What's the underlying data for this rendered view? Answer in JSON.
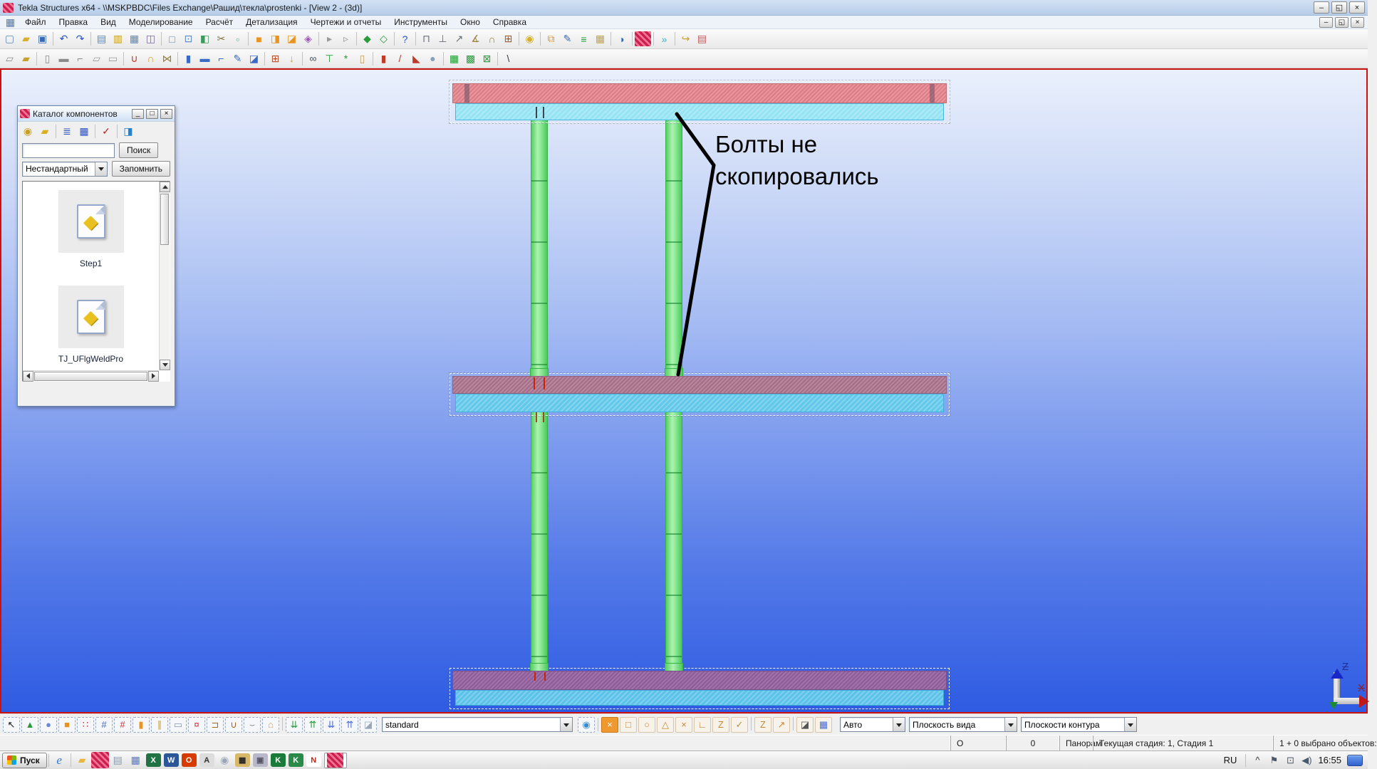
{
  "colors": {
    "accent_red": "#cc1111",
    "beam_pink": "#e9959b",
    "beam_mauve": "#b7879d",
    "beam_purple": "#a172a8",
    "beam_cyan": "#5fccea",
    "column_green": "#86ea8a"
  },
  "window": {
    "title": "Tekla Structures x64 - \\\\MSKPBDC\\Files Exchange\\Рашид\\текла\\prostenki  - [View 2 - (3d)]",
    "controls": [
      {
        "n": "minimize-button",
        "g": "–",
        "cls": "wbtn"
      },
      {
        "n": "restore-button",
        "g": "◱",
        "cls": "wbtn"
      },
      {
        "n": "close-button",
        "g": "×",
        "cls": "wbtn"
      }
    ],
    "mdi_controls": [
      {
        "n": "mdi-minimize-button",
        "g": "–",
        "cls": "wbtn sm"
      },
      {
        "n": "mdi-restore-button",
        "g": "◱",
        "cls": "wbtn sm"
      },
      {
        "n": "mdi-close-button",
        "g": "×",
        "cls": "wbtn sm"
      }
    ],
    "mdi_icon": [
      {
        "n": "view-window-icon",
        "g": "▦",
        "c": "#4a7ab5",
        "i": false
      }
    ]
  },
  "menubar": {
    "items": [
      {
        "n": "menu-file",
        "label": "Файл"
      },
      {
        "n": "menu-edit",
        "label": "Правка"
      },
      {
        "n": "menu-view",
        "label": "Вид"
      },
      {
        "n": "menu-modeling",
        "label": "Моделирование"
      },
      {
        "n": "menu-analysis",
        "label": "Расчёт"
      },
      {
        "n": "menu-detailing",
        "label": "Детализация"
      },
      {
        "n": "menu-drawings-reports",
        "label": "Чертежи и отчеты"
      },
      {
        "n": "menu-tools",
        "label": "Инструменты"
      },
      {
        "n": "menu-window",
        "label": "Окно"
      },
      {
        "n": "menu-help",
        "label": "Справка"
      }
    ]
  },
  "toolbar1": {
    "icons": [
      {
        "n": "new-file-icon",
        "g": "▢",
        "c": "#5a88c0"
      },
      {
        "n": "open-model-icon",
        "g": "▰",
        "c": "#d8b030"
      },
      {
        "n": "save-icon",
        "g": "▣",
        "c": "#3a68b0"
      },
      {
        "sep": true
      },
      {
        "n": "undo-icon",
        "g": "↶",
        "c": "#2a52c8"
      },
      {
        "n": "redo-icon",
        "g": "↷",
        "c": "#2a52c8"
      },
      {
        "sep": true
      },
      {
        "n": "copy-icon",
        "g": "▤",
        "c": "#5a88c0"
      },
      {
        "n": "paste-icon",
        "g": "▥",
        "c": "#c8a23a"
      },
      {
        "n": "paste-special-icon",
        "g": "▦",
        "c": "#5a88c0"
      },
      {
        "n": "stamp-icon",
        "g": "◫",
        "c": "#7a6a9a"
      },
      {
        "sep": true
      },
      {
        "n": "view-rect-icon",
        "g": "□",
        "c": "#5a88c0"
      },
      {
        "n": "view-point-icon",
        "g": "⊡",
        "c": "#5a88c0"
      },
      {
        "n": "view-list-icon",
        "g": "◧",
        "c": "#3a9a5a"
      },
      {
        "n": "cut-view-icon",
        "g": "✂",
        "c": "#8a7040"
      },
      {
        "n": "marquee-icon",
        "g": "▫",
        "c": "#6ab0a0"
      },
      {
        "sep": true
      },
      {
        "n": "create-part-icon",
        "g": "■",
        "c": "#e8941e"
      },
      {
        "n": "copy-part-icon",
        "g": "◨",
        "c": "#e8941e"
      },
      {
        "n": "move-part-icon",
        "g": "◪",
        "c": "#e8941e"
      },
      {
        "n": "purple-box-icon",
        "g": "◈",
        "c": "#9a5ab5"
      },
      {
        "sep": true
      },
      {
        "n": "arrow-prev-icon",
        "g": "▸",
        "c": "#9a9a9a"
      },
      {
        "n": "arrow-next-icon",
        "g": "▹",
        "c": "#9a9a9a"
      },
      {
        "sep": true
      },
      {
        "n": "numbering-icon",
        "g": "◆",
        "c": "#2a9a3a"
      },
      {
        "n": "numbering-all-icon",
        "g": "◇",
        "c": "#2a9a3a"
      },
      {
        "sep": true
      },
      {
        "n": "help-tool-icon",
        "g": "?",
        "c": "#2a52c8"
      },
      {
        "sep": true
      },
      {
        "n": "fence-icon",
        "g": "⊓",
        "c": "#666e7a"
      },
      {
        "n": "fence-half-icon",
        "g": "⊥",
        "c": "#666e7a"
      },
      {
        "n": "measure-icon",
        "g": "↗",
        "c": "#666e7a"
      },
      {
        "n": "measure-angle-icon",
        "g": "∡",
        "c": "#99803a"
      },
      {
        "n": "measure-arc-icon",
        "g": "∩",
        "c": "#99803a"
      },
      {
        "n": "bolt-measure-icon",
        "g": "⊞",
        "c": "#a05a2a"
      },
      {
        "sep": true
      },
      {
        "n": "pin-icon",
        "g": "◉",
        "c": "#d8b030"
      },
      {
        "sep": true
      },
      {
        "n": "component-copy-icon",
        "g": "⧉",
        "c": "#e8941e"
      },
      {
        "n": "component-edit-icon",
        "g": "✎",
        "c": "#3a6ab0"
      },
      {
        "n": "report-list-icon",
        "g": "≡",
        "c": "#2a9a3a"
      },
      {
        "n": "schedule-icon",
        "g": "▦",
        "c": "#c8a23a"
      },
      {
        "sep": true
      },
      {
        "n": "macro-icon",
        "g": "◑",
        "c": "#3a6ab0"
      },
      {
        "sep": true
      },
      {
        "n": "tekla-tool-icon",
        "g": "",
        "cls": "tklogo"
      },
      {
        "sep": true
      },
      {
        "n": "more-toolbars-icon",
        "g": "»",
        "c": "#3ab0c8"
      },
      {
        "sep": true
      },
      {
        "n": "open-component-icon",
        "g": "↪",
        "c": "#c8a030"
      },
      {
        "n": "screenshot-icon",
        "g": "▤",
        "c": "#c05a5a"
      }
    ]
  },
  "toolbar2": {
    "icons": [
      {
        "n": "page-gray-icon",
        "g": "▱",
        "c": "#8a8a8a"
      },
      {
        "n": "page-gold-icon",
        "g": "▰",
        "c": "#c8a030"
      },
      {
        "sep": true
      },
      {
        "n": "column-tool-icon",
        "g": "▯",
        "c": "#8a8a8a"
      },
      {
        "n": "beam-tool-icon",
        "g": "▬",
        "c": "#8a8a8a"
      },
      {
        "n": "polybeam-tool-icon",
        "g": "⌐",
        "c": "#8a8a8a"
      },
      {
        "n": "pad-tool-icon",
        "g": "▱",
        "c": "#9a9a9a"
      },
      {
        "n": "slab-tool-icon",
        "g": "▭",
        "c": "#9a9a9a"
      },
      {
        "sep": true
      },
      {
        "n": "ubolt-icon",
        "g": "∪",
        "c": "#c03a2a"
      },
      {
        "n": "hand-tool-icon",
        "g": "∩",
        "c": "#c8a030"
      },
      {
        "n": "hatch-x-icon",
        "g": "⋈",
        "c": "#99803a"
      },
      {
        "sep": true
      },
      {
        "n": "steel-column-icon",
        "g": "▮",
        "c": "#3a6ac8"
      },
      {
        "n": "steel-beam-icon",
        "g": "▬",
        "c": "#3a6ac8"
      },
      {
        "n": "steel-polybeam-icon",
        "g": "⌐",
        "c": "#3a6ac8"
      },
      {
        "n": "curved-beam-icon",
        "g": "✎",
        "c": "#3a6ac8"
      },
      {
        "n": "plate-icon",
        "g": "◪",
        "c": "#3a6ac8"
      },
      {
        "sep": true
      },
      {
        "n": "bolt-tool-icon",
        "g": "⊞",
        "c": "#b0502a"
      },
      {
        "n": "weld-tool-icon",
        "g": "↓",
        "c": "#c8a030"
      },
      {
        "sep": true
      },
      {
        "n": "binoculars-icon",
        "g": "∞",
        "c": "#44505e"
      },
      {
        "n": "phase-icon",
        "g": "⊤",
        "c": "#2a9a3a"
      },
      {
        "n": "autoconnect-icon",
        "g": "*",
        "c": "#2a9a3a"
      },
      {
        "n": "door-icon",
        "g": "▯",
        "c": "#c8a060"
      },
      {
        "sep": true
      },
      {
        "n": "fit-part-icon",
        "g": "▮",
        "c": "#c03a2a"
      },
      {
        "n": "split-part-icon",
        "g": "/",
        "c": "#c03a2a"
      },
      {
        "n": "chamfer-icon",
        "g": "◣",
        "c": "#c03a2a"
      },
      {
        "n": "sphere-icon",
        "g": "●",
        "c": "#88a0bb"
      },
      {
        "sep": true
      },
      {
        "n": "array-icon",
        "g": "▦",
        "c": "#2a9a3a"
      },
      {
        "n": "array2-icon",
        "g": "▩",
        "c": "#2a9a3a"
      },
      {
        "n": "array-x-icon",
        "g": "⊠",
        "c": "#2a9a3a"
      },
      {
        "sep": true
      },
      {
        "n": "construction-line-icon",
        "g": "\\",
        "c": "#333a44"
      }
    ]
  },
  "catalog": {
    "title": "Каталог компонентов",
    "controls": [
      {
        "n": "catalog-minimize-button",
        "g": "_",
        "cls": "cbtn"
      },
      {
        "n": "catalog-maximize-button",
        "g": "□",
        "cls": "cbtn"
      },
      {
        "n": "catalog-close-button",
        "g": "×",
        "cls": "cbtn"
      }
    ],
    "toolbar": [
      {
        "n": "search-components-icon",
        "g": "◉",
        "c": "#caa020"
      },
      {
        "n": "open-folder-icon",
        "g": "▰",
        "c": "#d8b020"
      },
      {
        "sep": true
      },
      {
        "n": "list-view-icon",
        "g": "≣",
        "c": "#2a50c0"
      },
      {
        "n": "thumbnails-view-icon",
        "g": "▦",
        "c": "#2a50c0"
      },
      {
        "sep": true
      },
      {
        "n": "abc-check-icon",
        "g": "✓",
        "c": "#c02020"
      },
      {
        "sep": true
      },
      {
        "n": "filter-icon",
        "g": "◨",
        "c": "#2a80c0"
      }
    ],
    "search_value": "",
    "search_button": "Поиск",
    "filter_value": "Нестандартный",
    "remember_button": "Запомнить",
    "doc_glyph": "◆",
    "items": [
      {
        "label": "Step1"
      },
      {
        "label": "TJ_UFlgWeldPro"
      }
    ]
  },
  "viewport": {
    "annotation_line1": "Болты не",
    "annotation_line2": "скопировались",
    "axis_z": "Z",
    "axis_x": "X"
  },
  "bottombar": {
    "select_icons": [
      {
        "n": "select-cursor-icon",
        "g": "↖",
        "c": "#111"
      },
      {
        "n": "select-components-icon",
        "g": "▲",
        "c": "#2a9a3a"
      },
      {
        "n": "select-points-icon",
        "g": "●",
        "c": "#6a8ad8"
      },
      {
        "n": "select-parts-icon",
        "g": "■",
        "c": "#e8941e"
      },
      {
        "n": "select-bolts-icon",
        "g": "∷",
        "c": "#cc2222"
      },
      {
        "n": "select-grid-icon",
        "g": "#",
        "c": "#3a6ac8"
      },
      {
        "n": "select-gridline-icon",
        "g": "#",
        "c": "#cc3333"
      },
      {
        "n": "select-rebar-icon",
        "g": "▮",
        "c": "#e8941e"
      },
      {
        "n": "select-rebar-group-icon",
        "g": "∥",
        "c": "#c8a030"
      },
      {
        "n": "select-surface-icon",
        "g": "▭",
        "c": "#8898b0"
      },
      {
        "n": "select-corners-icon",
        "g": "¤",
        "c": "#cc3333"
      },
      {
        "n": "select-single-bolt-icon",
        "g": "⊐",
        "c": "#a06a2a"
      },
      {
        "n": "select-ubolt-icon",
        "g": "∪",
        "c": "#a06a2a"
      },
      {
        "n": "select-weld-icon",
        "g": "⌣",
        "c": "#8a8a8a"
      },
      {
        "n": "select-polygon-icon",
        "g": "⌂",
        "c": "#c8a060"
      },
      {
        "sep": true
      },
      {
        "n": "select-assembly-down-icon",
        "g": "⇊",
        "c": "#2a9a3a"
      },
      {
        "n": "select-assembly-up-icon",
        "g": "⇈",
        "c": "#2a9a3a"
      },
      {
        "n": "select-object-down-icon",
        "g": "⇊",
        "c": "#4a6ad8"
      },
      {
        "n": "select-object-up-icon",
        "g": "⇈",
        "c": "#4a6ad8"
      },
      {
        "n": "select-plane-icon",
        "g": "◪",
        "c": "#9aa6b8"
      }
    ],
    "standard_value": "standard",
    "snap_settings_icon": [
      {
        "n": "snap-settings-icon",
        "g": "◉",
        "c": "#3a8ad0"
      }
    ],
    "snap_icons": [
      {
        "n": "snap-points-icon",
        "g": "×",
        "c": "#ffffff",
        "bg": "#f09830",
        "cls": "solid act"
      },
      {
        "n": "snap-endpoint-icon",
        "g": "□",
        "c": "#c8883a",
        "cls": "solid"
      },
      {
        "n": "snap-center-icon",
        "g": "○",
        "c": "#c8883a",
        "cls": "solid"
      },
      {
        "n": "snap-midpoint-icon",
        "g": "△",
        "c": "#c8883a",
        "cls": "solid"
      },
      {
        "n": "snap-intersection-icon",
        "g": "×",
        "c": "#c8883a",
        "cls": "solid"
      },
      {
        "n": "snap-perpendicular-icon",
        "g": "∟",
        "c": "#c8883a",
        "cls": "solid"
      },
      {
        "n": "snap-line-icon",
        "g": "Z",
        "c": "#c8883a",
        "cls": "solid"
      },
      {
        "n": "snap-any-icon",
        "g": "✓",
        "c": "#c8883a",
        "cls": "solid"
      },
      {
        "sep": true
      },
      {
        "n": "snap-extension-icon",
        "g": "Z",
        "c": "#c8883a",
        "cls": "solid"
      },
      {
        "n": "snap-direction-icon",
        "g": "↗",
        "c": "#c8883a",
        "cls": "solid"
      },
      {
        "sep": true
      },
      {
        "n": "snap-depth-icon",
        "g": "◪",
        "c": "#555555",
        "cls": "solid"
      },
      {
        "n": "snap-grid-icon",
        "g": "▦",
        "c": "#4a6ad8",
        "cls": "solid"
      }
    ],
    "auto_value": "Авто",
    "plane_value": "Плоскость вида",
    "contour_value": "Плоскости контура"
  },
  "statusbar": {
    "cells": [
      "O",
      "0",
      "Панорам",
      "Текущая стадия: 1, Стадия 1",
      "1 + 0 выбрано объектов:"
    ]
  },
  "taskbar": {
    "start_label": "Пуск",
    "quicklaunch": [
      {
        "n": "ie-icon",
        "g": "e",
        "c": "#2a7ad8",
        "cls": "it"
      },
      {
        "sep": true
      },
      {
        "n": "explorer-folder-icon",
        "g": "▰",
        "c": "#e8b63a"
      },
      {
        "n": "tekla-quicklaunch-icon",
        "g": "",
        "cls": "tklogo"
      },
      {
        "n": "notepad-icon",
        "g": "▤",
        "c": "#8899aa"
      },
      {
        "n": "calculator-icon",
        "g": "▦",
        "c": "#5577cc"
      },
      {
        "n": "excel-icon",
        "g": "X",
        "c": "#ffffff",
        "bg": "#217346",
        "cls": "appbox"
      },
      {
        "n": "word-icon",
        "g": "W",
        "c": "#ffffff",
        "bg": "#2b579a",
        "cls": "appbox"
      },
      {
        "n": "outlook-icon",
        "g": "O",
        "c": "#ffffff",
        "bg": "#d83b01",
        "cls": "appbox"
      },
      {
        "n": "photo-app-icon",
        "g": "A",
        "c": "#333333",
        "bg": "#dddddd",
        "cls": "appbox"
      },
      {
        "n": "abbyy-icon",
        "g": "◉",
        "c": "#9aa6b8"
      },
      {
        "n": "estimate-app-icon",
        "g": "▦",
        "c": "#222222",
        "bg": "#d8b868",
        "cls": "appbox"
      },
      {
        "n": "printer-app-icon",
        "g": "▣",
        "c": "#555566",
        "bg": "#b8b8c8",
        "cls": "appbox"
      },
      {
        "n": "kompas-icon",
        "g": "K",
        "c": "#ffffff",
        "bg": "#1a7a3a",
        "cls": "appbox"
      },
      {
        "n": "kompas-3d-icon",
        "g": "K",
        "c": "#ffffff",
        "bg": "#2a8a4a",
        "cls": "appbox"
      },
      {
        "n": "normacs-icon",
        "g": "N",
        "c": "#c0261c",
        "bg": "#ffffff",
        "cls": "appbox"
      }
    ],
    "task_icon": [
      {
        "n": "tekla-taskbar-button-icon",
        "g": "",
        "cls": "tklogo"
      }
    ],
    "lang": "RU",
    "tray": [
      {
        "n": "hidden-icons-chevron",
        "g": "^",
        "c": "#333333"
      },
      {
        "n": "action-center-flag-icon",
        "g": "⚑",
        "c": "#4a5a6e"
      },
      {
        "n": "network-icon",
        "g": "⊡",
        "c": "#4a5a6e"
      },
      {
        "n": "volume-icon",
        "g": "◀)",
        "c": "#4a5a6e"
      }
    ],
    "time": "16:55"
  }
}
